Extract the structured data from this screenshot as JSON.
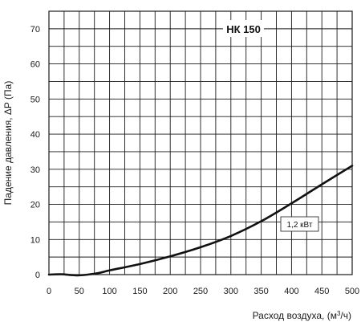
{
  "chart_data": {
    "type": "line",
    "title": "НК 150",
    "xlabel_prefix": "Расход воздуха, (м",
    "xlabel_sup": "3",
    "xlabel_suffix": "/ч)",
    "ylabel": "Падение давления, ΔP (Па)",
    "xlim": [
      0,
      500
    ],
    "ylim": [
      0,
      75
    ],
    "x_ticks": [
      0,
      50,
      100,
      150,
      200,
      250,
      300,
      350,
      400,
      450,
      500
    ],
    "y_ticks": [
      0,
      10,
      20,
      30,
      40,
      50,
      60,
      70
    ],
    "grid": true,
    "series": [
      {
        "name": "1,2 кВт",
        "x": [
          0,
          20,
          50,
          80,
          100,
          150,
          200,
          250,
          300,
          350,
          400,
          450,
          500
        ],
        "y": [
          0,
          0.1,
          -0.2,
          0.4,
          1.2,
          3.0,
          5.2,
          7.8,
          11.0,
          15.2,
          20.3,
          25.7,
          31.0
        ]
      }
    ],
    "colors": {
      "line": "#111111",
      "grid": "#1a1a1a"
    }
  }
}
